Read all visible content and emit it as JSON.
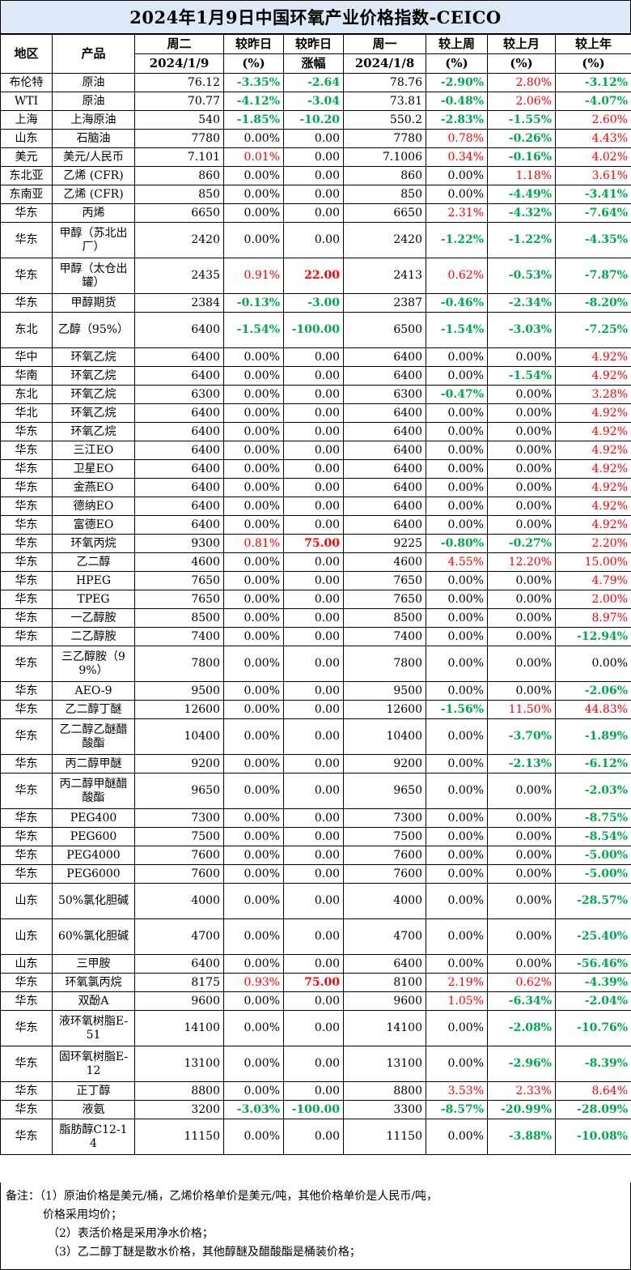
{
  "title": "2024年1月9日中国环氧产业价格指数-CEICO",
  "colors": {
    "title_bg": "#dde9f6",
    "up": "#ff0000",
    "down": "#00a84f",
    "border": "#000000"
  },
  "header": {
    "region": "地区",
    "product": "产品",
    "tue": "周二",
    "tue_date": "2024/1/9",
    "chg_pct": "较昨日",
    "chg_pct_unit": "(%)",
    "chg_abs": "较昨日",
    "chg_abs_unit": "涨幅",
    "mon": "周一",
    "mon_date": "2024/1/8",
    "week": "较上周",
    "week_unit": "(%)",
    "month": "较上月",
    "month_unit": "(%)",
    "year": "较上年",
    "year_unit": "(%)"
  },
  "rows": [
    {
      "region": "布伦特",
      "product": "原油",
      "tue": "76.12",
      "dpct": "-3.35%",
      "dabs": "-2.64",
      "mon": "78.76",
      "wk": "-2.90%",
      "mo": "2.80%",
      "yr": "-3.12%"
    },
    {
      "region": "WTI",
      "product": "原油",
      "tue": "70.77",
      "dpct": "-4.12%",
      "dabs": "-3.04",
      "mon": "73.81",
      "wk": "-0.48%",
      "mo": "2.06%",
      "yr": "-4.07%"
    },
    {
      "region": "上海",
      "product": "上海原油",
      "tue": "540",
      "dpct": "-1.85%",
      "dabs": "-10.20",
      "mon": "550.2",
      "wk": "-2.83%",
      "mo": "-1.55%",
      "yr": "2.60%"
    },
    {
      "region": "山东",
      "product": "石脑油",
      "tue": "7780",
      "dpct": "0.00%",
      "dabs": "0.00",
      "mon": "7780",
      "wk": "0.78%",
      "mo": "-0.26%",
      "yr": "4.43%"
    },
    {
      "region": "美元",
      "product": "美元/人民币",
      "tue": "7.101",
      "dpct": "0.01%",
      "dabs": "0.00",
      "mon": "7.1006",
      "wk": "0.34%",
      "mo": "-0.16%",
      "yr": "4.02%"
    },
    {
      "region": "东北亚",
      "product": "乙烯 (CFR)",
      "tue": "860",
      "dpct": "0.00%",
      "dabs": "0.00",
      "mon": "860",
      "wk": "0.00%",
      "mo": "1.18%",
      "yr": "3.61%"
    },
    {
      "region": "东南亚",
      "product": "乙烯 (CFR)",
      "tue": "850",
      "dpct": "0.00%",
      "dabs": "0.00",
      "mon": "850",
      "wk": "0.00%",
      "mo": "-4.49%",
      "yr": "-3.41%"
    },
    {
      "region": "华东",
      "product": "丙烯",
      "tue": "6650",
      "dpct": "0.00%",
      "dabs": "0.00",
      "mon": "6650",
      "wk": "2.31%",
      "mo": "-4.32%",
      "yr": "-7.64%"
    },
    {
      "region": "华东",
      "product": "甲醇（苏北出厂）",
      "tue": "2420",
      "dpct": "0.00%",
      "dabs": "0.00",
      "mon": "2420",
      "wk": "-1.22%",
      "mo": "-1.22%",
      "yr": "-4.35%"
    },
    {
      "region": "华东",
      "product": "甲醇（太仓出罐）",
      "tue": "2435",
      "dpct": "0.91%",
      "dabs": "22.00",
      "mon": "2413",
      "wk": "0.62%",
      "mo": "-0.53%",
      "yr": "-7.87%"
    },
    {
      "region": "华东",
      "product": "甲醇期货",
      "tue": "2384",
      "dpct": "-0.13%",
      "dabs": "-3.00",
      "mon": "2387",
      "wk": "-0.46%",
      "mo": "-2.34%",
      "yr": "-8.20%"
    },
    {
      "region": "东北",
      "product": "乙醇（95%）",
      "tue": "6400",
      "dpct": "-1.54%",
      "dabs": "-100.00",
      "mon": "6500",
      "wk": "-1.54%",
      "mo": "-3.03%",
      "yr": "-7.25%"
    },
    {
      "region": "华中",
      "product": "环氧乙烷",
      "tue": "6400",
      "dpct": "0.00%",
      "dabs": "0.00",
      "mon": "6400",
      "wk": "0.00%",
      "mo": "0.00%",
      "yr": "4.92%"
    },
    {
      "region": "华南",
      "product": "环氧乙烷",
      "tue": "6400",
      "dpct": "0.00%",
      "dabs": "0.00",
      "mon": "6400",
      "wk": "0.00%",
      "mo": "-1.54%",
      "yr": "4.92%"
    },
    {
      "region": "东北",
      "product": "环氧乙烷",
      "tue": "6300",
      "dpct": "0.00%",
      "dabs": "0.00",
      "mon": "6300",
      "wk": "-0.47%",
      "mo": "0.00%",
      "yr": "3.28%"
    },
    {
      "region": "华北",
      "product": "环氧乙烷",
      "tue": "6400",
      "dpct": "0.00%",
      "dabs": "0.00",
      "mon": "6400",
      "wk": "0.00%",
      "mo": "0.00%",
      "yr": "4.92%"
    },
    {
      "region": "华东",
      "product": "环氧乙烷",
      "tue": "6400",
      "dpct": "0.00%",
      "dabs": "0.00",
      "mon": "6400",
      "wk": "0.00%",
      "mo": "0.00%",
      "yr": "4.92%"
    },
    {
      "region": "华东",
      "product": "三江EO",
      "tue": "6400",
      "dpct": "0.00%",
      "dabs": "0.00",
      "mon": "6400",
      "wk": "0.00%",
      "mo": "0.00%",
      "yr": "4.92%"
    },
    {
      "region": "华东",
      "product": "卫星EO",
      "tue": "6400",
      "dpct": "0.00%",
      "dabs": "0.00",
      "mon": "6400",
      "wk": "0.00%",
      "mo": "0.00%",
      "yr": "4.92%"
    },
    {
      "region": "华东",
      "product": "金燕EO",
      "tue": "6400",
      "dpct": "0.00%",
      "dabs": "0.00",
      "mon": "6400",
      "wk": "0.00%",
      "mo": "0.00%",
      "yr": "4.92%"
    },
    {
      "region": "华东",
      "product": "德纳EO",
      "tue": "6400",
      "dpct": "0.00%",
      "dabs": "0.00",
      "mon": "6400",
      "wk": "0.00%",
      "mo": "0.00%",
      "yr": "4.92%"
    },
    {
      "region": "华东",
      "product": "富德EO",
      "tue": "6400",
      "dpct": "0.00%",
      "dabs": "0.00",
      "mon": "6400",
      "wk": "0.00%",
      "mo": "0.00%",
      "yr": "4.92%"
    },
    {
      "region": "华东",
      "product": "环氧丙烷",
      "tue": "9300",
      "dpct": "0.81%",
      "dabs": "75.00",
      "mon": "9225",
      "wk": "-0.80%",
      "mo": "-0.27%",
      "yr": "2.20%"
    },
    {
      "region": "华东",
      "product": "乙二醇",
      "tue": "4600",
      "dpct": "0.00%",
      "dabs": "0.00",
      "mon": "4600",
      "wk": "4.55%",
      "mo": "12.20%",
      "yr": "15.00%"
    },
    {
      "region": "华东",
      "product": "HPEG",
      "tue": "7650",
      "dpct": "0.00%",
      "dabs": "0.00",
      "mon": "7650",
      "wk": "0.00%",
      "mo": "0.00%",
      "yr": "4.79%"
    },
    {
      "region": "华东",
      "product": "TPEG",
      "tue": "7650",
      "dpct": "0.00%",
      "dabs": "0.00",
      "mon": "7650",
      "wk": "0.00%",
      "mo": "0.00%",
      "yr": "2.00%"
    },
    {
      "region": "华东",
      "product": "一乙醇胺",
      "tue": "8500",
      "dpct": "0.00%",
      "dabs": "0.00",
      "mon": "8500",
      "wk": "0.00%",
      "mo": "0.00%",
      "yr": "8.97%"
    },
    {
      "region": "华东",
      "product": "二乙醇胺",
      "tue": "7400",
      "dpct": "0.00%",
      "dabs": "0.00",
      "mon": "7400",
      "wk": "0.00%",
      "mo": "0.00%",
      "yr": "-12.94%"
    },
    {
      "region": "华东",
      "product": "三乙醇胺（99%）",
      "tue": "7800",
      "dpct": "0.00%",
      "dabs": "0.00",
      "mon": "7800",
      "wk": "0.00%",
      "mo": "0.00%",
      "yr": "0.00%"
    },
    {
      "region": "华东",
      "product": "AEO-9",
      "tue": "9500",
      "dpct": "0.00%",
      "dabs": "0.00",
      "mon": "9500",
      "wk": "0.00%",
      "mo": "0.00%",
      "yr": "-2.06%"
    },
    {
      "region": "华东",
      "product": "乙二醇丁醚",
      "tue": "12600",
      "dpct": "0.00%",
      "dabs": "0.00",
      "mon": "12600",
      "wk": "-1.56%",
      "mo": "11.50%",
      "yr": "44.83%"
    },
    {
      "region": "华东",
      "product": "乙二醇乙醚醋酸酯",
      "tue": "10400",
      "dpct": "0.00%",
      "dabs": "0.00",
      "mon": "10400",
      "wk": "0.00%",
      "mo": "-3.70%",
      "yr": "-1.89%"
    },
    {
      "region": "华东",
      "product": "丙二醇甲醚",
      "tue": "9200",
      "dpct": "0.00%",
      "dabs": "0.00",
      "mon": "9200",
      "wk": "0.00%",
      "mo": "-2.13%",
      "yr": "-6.12%"
    },
    {
      "region": "华东",
      "product": "丙二醇甲醚醋酸酯",
      "tue": "9650",
      "dpct": "0.00%",
      "dabs": "0.00",
      "mon": "9650",
      "wk": "0.00%",
      "mo": "0.00%",
      "yr": "-2.03%"
    },
    {
      "region": "华东",
      "product": "PEG400",
      "tue": "7300",
      "dpct": "0.00%",
      "dabs": "0.00",
      "mon": "7300",
      "wk": "0.00%",
      "mo": "0.00%",
      "yr": "-8.75%"
    },
    {
      "region": "华东",
      "product": "PEG600",
      "tue": "7500",
      "dpct": "0.00%",
      "dabs": "0.00",
      "mon": "7500",
      "wk": "0.00%",
      "mo": "0.00%",
      "yr": "-8.54%"
    },
    {
      "region": "华东",
      "product": "PEG4000",
      "tue": "7600",
      "dpct": "0.00%",
      "dabs": "0.00",
      "mon": "7600",
      "wk": "0.00%",
      "mo": "0.00%",
      "yr": "-5.00%"
    },
    {
      "region": "华东",
      "product": "PEG6000",
      "tue": "7600",
      "dpct": "0.00%",
      "dabs": "0.00",
      "mon": "7600",
      "wk": "0.00%",
      "mo": "0.00%",
      "yr": "-5.00%"
    },
    {
      "region": "山东",
      "product": "50%氯化胆碱",
      "tue": "4000",
      "dpct": "0.00%",
      "dabs": "0.00",
      "mon": "4000",
      "wk": "0.00%",
      "mo": "0.00%",
      "yr": "-28.57%"
    },
    {
      "region": "山东",
      "product": "60%氯化胆碱",
      "tue": "4700",
      "dpct": "0.00%",
      "dabs": "0.00",
      "mon": "4700",
      "wk": "0.00%",
      "mo": "0.00%",
      "yr": "-25.40%"
    },
    {
      "region": "山东",
      "product": "三甲胺",
      "tue": "6400",
      "dpct": "0.00%",
      "dabs": "0.00",
      "mon": "6400",
      "wk": "0.00%",
      "mo": "0.00%",
      "yr": "-56.46%"
    },
    {
      "region": "华东",
      "product": "环氧氯丙烷",
      "tue": "8175",
      "dpct": "0.93%",
      "dabs": "75.00",
      "mon": "8100",
      "wk": "2.19%",
      "mo": "0.62%",
      "yr": "-4.39%"
    },
    {
      "region": "华东",
      "product": "双酚A",
      "tue": "9600",
      "dpct": "0.00%",
      "dabs": "0.00",
      "mon": "9600",
      "wk": "1.05%",
      "mo": "-6.34%",
      "yr": "-2.04%"
    },
    {
      "region": "华东",
      "product": "液环氧树脂E-51",
      "tue": "14100",
      "dpct": "0.00%",
      "dabs": "0.00",
      "mon": "14100",
      "wk": "0.00%",
      "mo": "-2.08%",
      "yr": "-10.76%"
    },
    {
      "region": "华东",
      "product": "固环氧树脂E-12",
      "tue": "13100",
      "dpct": "0.00%",
      "dabs": "0.00",
      "mon": "13100",
      "wk": "0.00%",
      "mo": "-2.96%",
      "yr": "-8.39%"
    },
    {
      "region": "华东",
      "product": "正丁醇",
      "tue": "8800",
      "dpct": "0.00%",
      "dabs": "0.00",
      "mon": "8800",
      "wk": "3.53%",
      "mo": "2.33%",
      "yr": "8.64%"
    },
    {
      "region": "华东",
      "product": "液氨",
      "tue": "3200",
      "dpct": "-3.03%",
      "dabs": "-100.00",
      "mon": "3300",
      "wk": "-8.57%",
      "mo": "-20.99%",
      "yr": "-28.09%"
    },
    {
      "region": "华东",
      "product": "脂肪醇C12-14",
      "tue": "11150",
      "dpct": "0.00%",
      "dabs": "0.00",
      "mon": "11150",
      "wk": "0.00%",
      "mo": "-3.88%",
      "yr": "-10.08%"
    }
  ],
  "notes": {
    "line1": "备注：（1）原油价格是美元/桶，乙烯价格单价是美元/吨，其他价格单价是人民币/吨，",
    "line1b": "价格采用均价；",
    "line2": "（2）表活价格是采用净水价格；",
    "line3": "（3）乙二醇丁醚是散水价格，其他醇醚及醋酸酯是桶装价格；"
  }
}
